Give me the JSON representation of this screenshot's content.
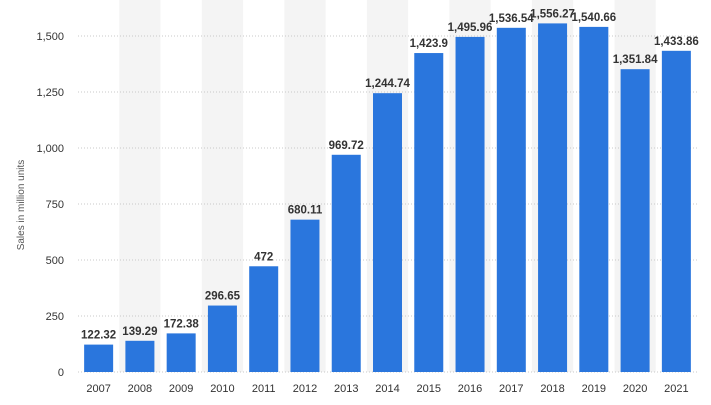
{
  "chart_data": {
    "type": "bar",
    "categories": [
      "2007",
      "2008",
      "2009",
      "2010",
      "2011",
      "2012",
      "2013",
      "2014",
      "2015",
      "2016",
      "2017",
      "2018",
      "2019",
      "2020",
      "2021"
    ],
    "values": [
      122.32,
      139.29,
      172.38,
      296.65,
      472,
      680.11,
      969.72,
      1244.74,
      1423.9,
      1495.96,
      1536.54,
      1556.27,
      1540.66,
      1351.84,
      1433.86
    ],
    "value_labels": [
      "122.32",
      "139.29",
      "172.38",
      "296.65",
      "472",
      "680.11",
      "969.72",
      "1,244.74",
      "1,423.9",
      "1,495.96",
      "1,536.54",
      "1,556.27",
      "1,540.66",
      "1,351.84",
      "1,433.86"
    ],
    "ylabel": "Sales in million units",
    "xlabel": "",
    "ylim": [
      0,
      1670
    ],
    "yticks": [
      0,
      250,
      500,
      750,
      1000,
      1250,
      1500
    ],
    "ytick_labels": [
      "0",
      "250",
      "500",
      "750",
      "1,000",
      "1,250",
      "1,500"
    ],
    "grid": true,
    "bar_color": "#2a76dd",
    "band_color": "#f4f4f4"
  }
}
